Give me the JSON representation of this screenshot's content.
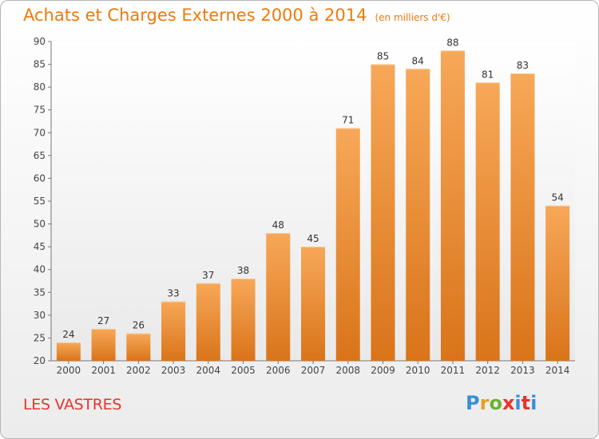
{
  "header": {
    "title": "Achats et Charges Externes 2000 à 2014",
    "subtitle": "(en milliers d'€)"
  },
  "footer": {
    "commune": "LES VASTRES",
    "logo_text": "Proxiti"
  },
  "colors": {
    "bar_light": "#f7a858",
    "bar_dark": "#d9741a",
    "title": "#f07a0a",
    "commune": "#e8342a"
  },
  "chart_data": {
    "type": "bar",
    "title": "Achats et Charges Externes 2000 à 2014",
    "xlabel": "",
    "ylabel": "",
    "categories": [
      "2000",
      "2001",
      "2002",
      "2003",
      "2004",
      "2005",
      "2006",
      "2007",
      "2008",
      "2009",
      "2010",
      "2011",
      "2012",
      "2013",
      "2014"
    ],
    "values": [
      24,
      27,
      26,
      33,
      37,
      38,
      48,
      45,
      71,
      85,
      84,
      88,
      81,
      83,
      54
    ],
    "ylim": [
      20,
      90
    ],
    "yticks": [
      20,
      25,
      30,
      35,
      40,
      45,
      50,
      55,
      60,
      65,
      70,
      75,
      80,
      85,
      90
    ],
    "grid": false,
    "data_labels": true
  }
}
